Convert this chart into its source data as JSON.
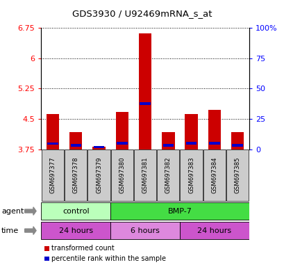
{
  "title": "GDS3930 / U92469mRNA_s_at",
  "samples": [
    "GSM697377",
    "GSM697378",
    "GSM697379",
    "GSM697380",
    "GSM697381",
    "GSM697382",
    "GSM697383",
    "GSM697384",
    "GSM697385"
  ],
  "transformed_counts": [
    4.62,
    4.17,
    3.82,
    4.68,
    6.62,
    4.17,
    4.62,
    4.72,
    4.17
  ],
  "percentile_bottom": [
    3.86,
    3.82,
    3.77,
    3.87,
    4.85,
    3.82,
    3.87,
    3.87,
    3.82
  ],
  "percentile_top": [
    3.92,
    3.88,
    3.83,
    3.93,
    4.91,
    3.88,
    3.93,
    3.93,
    3.88
  ],
  "bar_bottom": 3.75,
  "ylim": [
    3.75,
    6.75
  ],
  "yticks": [
    3.75,
    4.5,
    5.25,
    6.0,
    6.75
  ],
  "ytick_labels": [
    "3.75",
    "4.5",
    "5.25",
    "6",
    "6.75"
  ],
  "right_yticks": [
    0,
    25,
    50,
    75,
    100
  ],
  "right_ytick_labels": [
    "0",
    "25",
    "50",
    "75",
    "100%"
  ],
  "bar_color": "#cc0000",
  "blue_color": "#0000cc",
  "agent_groups": [
    {
      "label": "control",
      "start": 0,
      "end": 3,
      "color": "#bbffbb"
    },
    {
      "label": "BMP-7",
      "start": 3,
      "end": 9,
      "color": "#44dd44"
    }
  ],
  "time_groups": [
    {
      "label": "24 hours",
      "start": 0,
      "end": 3,
      "color": "#cc55cc"
    },
    {
      "label": "6 hours",
      "start": 3,
      "end": 6,
      "color": "#dd88dd"
    },
    {
      "label": "24 hours",
      "start": 6,
      "end": 9,
      "color": "#cc55cc"
    }
  ],
  "legend_red": "transformed count",
  "legend_blue": "percentile rank within the sample",
  "agent_label": "agent",
  "time_label": "time",
  "bar_width": 0.55,
  "tick_label_color_left": "red",
  "tick_label_color_right": "blue"
}
